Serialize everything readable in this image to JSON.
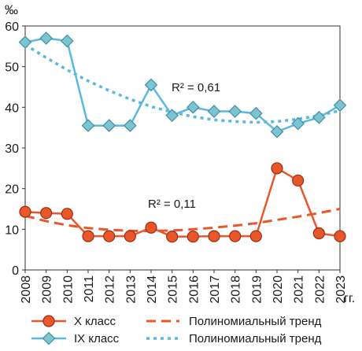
{
  "chart_data": {
    "type": "line",
    "y_unit": "‰",
    "x_unit": "гг.",
    "ylim": [
      0,
      60
    ],
    "y_ticks": [
      0,
      10,
      20,
      30,
      40,
      50,
      60
    ],
    "x": [
      "2008",
      "2009",
      "2010",
      "2011",
      "2012",
      "2013",
      "2014",
      "2015",
      "2016",
      "2017",
      "2018",
      "2019",
      "2020",
      "2021",
      "2022",
      "2023"
    ],
    "series": [
      {
        "name": "IX класс",
        "color": "#5bb8e0",
        "marker": "diamond",
        "values": [
          56,
          57,
          56.3,
          35.5,
          35.5,
          35.5,
          45.5,
          38,
          40,
          39,
          39,
          38.5,
          34,
          36,
          37.5,
          40.5
        ],
        "trend": {
          "name": "Полиномиальный тренд",
          "style": "dotted",
          "r2_label": "R² = 0,61",
          "values": [
            55.4,
            52.2,
            49.2,
            46.5,
            44.1,
            42.0,
            40.2,
            38.8,
            37.7,
            36.9,
            36.5,
            36.3,
            36.5,
            37.1,
            38.0,
            39.2
          ]
        }
      },
      {
        "name": "X класс",
        "color": "#e8572a",
        "marker": "circle",
        "values": [
          14.3,
          14,
          13.8,
          8.3,
          8.3,
          8.3,
          10.4,
          8.2,
          8.2,
          8.3,
          8.3,
          8.3,
          25,
          22,
          9,
          8.3
        ],
        "trend": {
          "name": "Полиномиальный тренд",
          "style": "dashed",
          "r2_label": "R² = 0,11",
          "values": [
            13.3,
            12.0,
            11.0,
            10.3,
            9.9,
            9.6,
            9.6,
            9.7,
            10.0,
            10.4,
            10.9,
            11.5,
            12.3,
            13.1,
            14.0,
            15.0
          ]
        }
      }
    ],
    "legend": [
      {
        "label": "X класс",
        "series": 1,
        "kind": "series"
      },
      {
        "label": "Полиномиальный тренд",
        "series": 1,
        "kind": "trend"
      },
      {
        "label": "IX класс",
        "series": 0,
        "kind": "series"
      },
      {
        "label": "Полиномиальный тренд",
        "series": 0,
        "kind": "trend"
      }
    ]
  }
}
